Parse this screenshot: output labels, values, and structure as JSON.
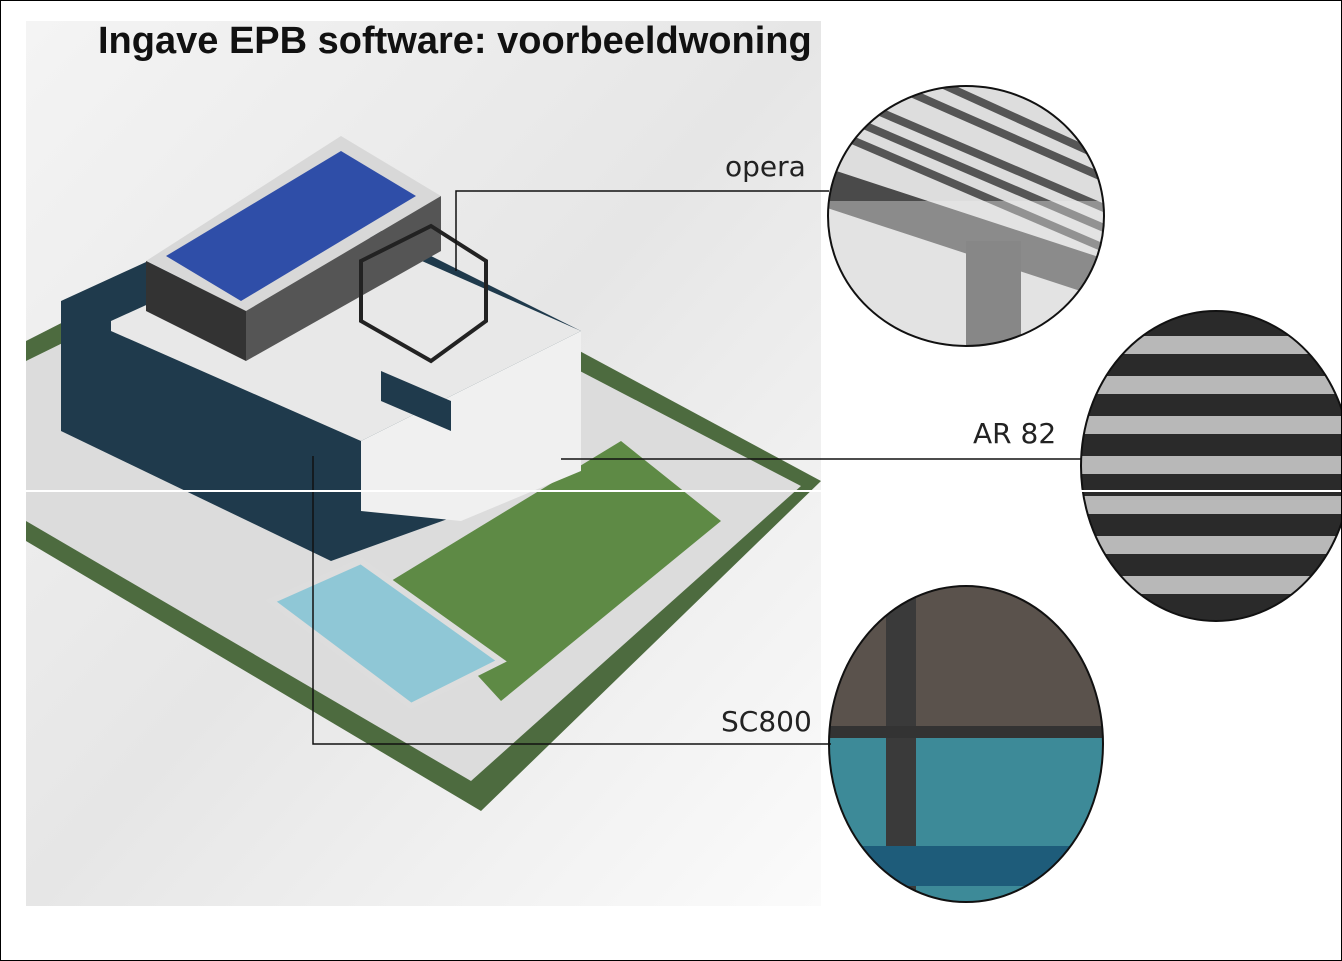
{
  "header": {
    "title": "Ingave EPB software: voorbeeldwoning"
  },
  "callouts": [
    {
      "label": "opera"
    },
    {
      "label": "AR 82"
    },
    {
      "label": "SC800"
    }
  ]
}
